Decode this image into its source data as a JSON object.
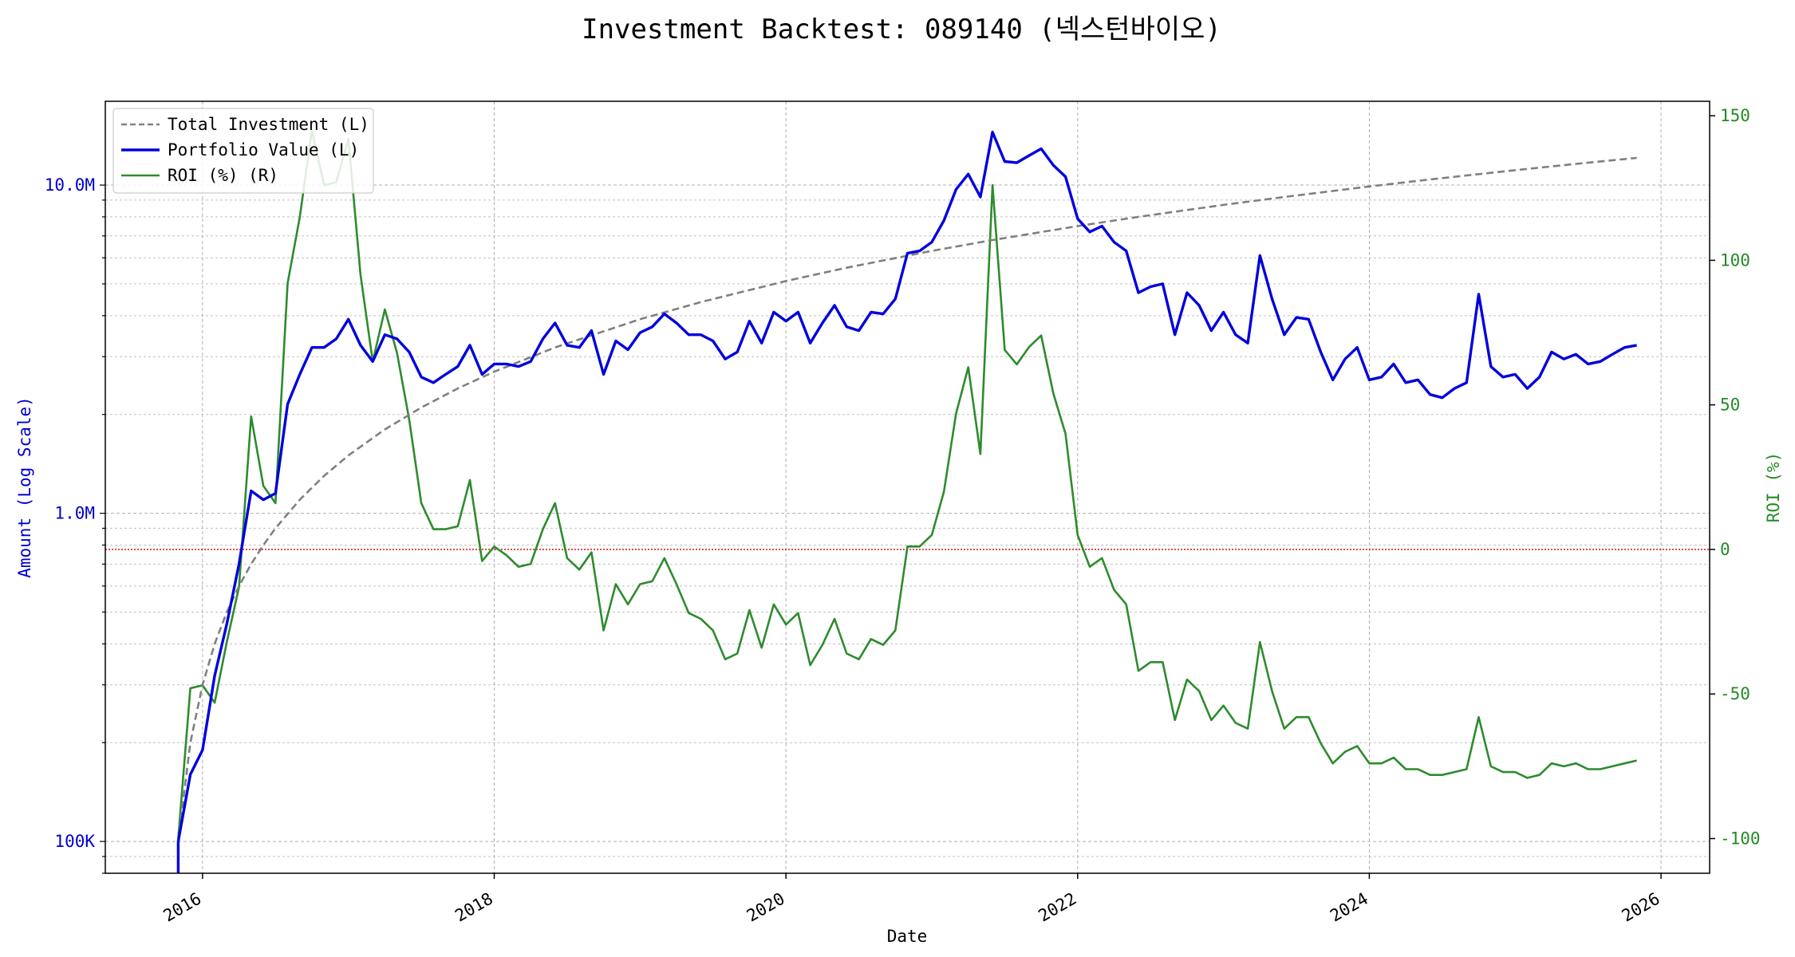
{
  "chart_data": {
    "type": "line",
    "title": "Investment Backtest: 089140 (넥스턴바이오)",
    "xlabel": "Date",
    "ylabel_left": "Amount (Log Scale)",
    "ylabel_right": "ROI (%)",
    "left_scale": "log",
    "left_ylim": [
      80000,
      18000000
    ],
    "right_ylim": [
      -112,
      155
    ],
    "x_range": [
      "2015-05-01",
      "2026-05-01"
    ],
    "x_ticks": [
      "2016",
      "2018",
      "2020",
      "2022",
      "2024",
      "2026"
    ],
    "left_ticks": [
      {
        "label": "100K",
        "value": 100000
      },
      {
        "label": "1.0M",
        "value": 1000000
      },
      {
        "label": "10.0M",
        "value": 10000000
      }
    ],
    "right_ticks": [
      -100,
      -50,
      0,
      50,
      100,
      150
    ],
    "grid": true,
    "zero_line": {
      "value": 0,
      "axis": "right",
      "color": "#cc0000"
    },
    "legend_position": "upper-left",
    "colors": {
      "total": "#808080",
      "portfolio": "#0000dd",
      "roi": "#2e8b2e"
    },
    "series": [
      {
        "name": "Total Investment (L)",
        "axis": "left",
        "style": "dashed",
        "x": [
          "2015-11",
          "2015-12",
          "2016-01",
          "2016-02",
          "2016-03",
          "2016-04",
          "2016-05",
          "2016-06",
          "2016-07",
          "2016-09",
          "2016-11",
          "2017-01",
          "2017-04",
          "2017-07",
          "2017-10",
          "2018-01",
          "2018-06",
          "2019-01",
          "2019-06",
          "2020-01",
          "2020-06",
          "2021-01",
          "2021-06",
          "2022-01",
          "2022-06",
          "2023-01",
          "2023-06",
          "2024-01",
          "2024-06",
          "2025-01",
          "2025-06",
          "2025-11"
        ],
        "values": [
          100000,
          200000,
          300000,
          400000,
          500000,
          600000,
          700000,
          800000,
          900000,
          1100000,
          1300000,
          1500000,
          1800000,
          2100000,
          2400000,
          2700000,
          3200000,
          3900000,
          4400000,
          5100000,
          5600000,
          6300000,
          6800000,
          7500000,
          8000000,
          8700000,
          9200000,
          9900000,
          10400000,
          11100000,
          11600000,
          12100000
        ]
      },
      {
        "name": "Portfolio Value (L)",
        "axis": "left",
        "style": "solid",
        "x": [
          "2015-11",
          "2015-12",
          "2016-01",
          "2016-02",
          "2016-03",
          "2016-04",
          "2016-05",
          "2016-06",
          "2016-07",
          "2016-08",
          "2016-09",
          "2016-10",
          "2016-11",
          "2016-12",
          "2017-01",
          "2017-02",
          "2017-03",
          "2017-04",
          "2017-05",
          "2017-06",
          "2017-07",
          "2017-08",
          "2017-09",
          "2017-10",
          "2017-11",
          "2017-12",
          "2018-01",
          "2018-02",
          "2018-03",
          "2018-04",
          "2018-05",
          "2018-06",
          "2018-07",
          "2018-08",
          "2018-09",
          "2018-10",
          "2018-11",
          "2018-12",
          "2019-01",
          "2019-02",
          "2019-03",
          "2019-04",
          "2019-05",
          "2019-06",
          "2019-07",
          "2019-08",
          "2019-09",
          "2019-10",
          "2019-11",
          "2019-12",
          "2020-01",
          "2020-02",
          "2020-03",
          "2020-04",
          "2020-05",
          "2020-06",
          "2020-07",
          "2020-08",
          "2020-09",
          "2020-10",
          "2020-11",
          "2020-12",
          "2021-01",
          "2021-02",
          "2021-03",
          "2021-04",
          "2021-05",
          "2021-06",
          "2021-07",
          "2021-08",
          "2021-09",
          "2021-10",
          "2021-11",
          "2021-12",
          "2022-01",
          "2022-02",
          "2022-03",
          "2022-04",
          "2022-05",
          "2022-06",
          "2022-07",
          "2022-08",
          "2022-09",
          "2022-10",
          "2022-11",
          "2022-12",
          "2023-01",
          "2023-02",
          "2023-03",
          "2023-04",
          "2023-05",
          "2023-06",
          "2023-07",
          "2023-08",
          "2023-09",
          "2023-10",
          "2023-11",
          "2023-12",
          "2024-01",
          "2024-02",
          "2024-03",
          "2024-04",
          "2024-05",
          "2024-06",
          "2024-07",
          "2024-08",
          "2024-09",
          "2024-10",
          "2024-11",
          "2024-12",
          "2025-01",
          "2025-02",
          "2025-03",
          "2025-04",
          "2025-05",
          "2025-06",
          "2025-07",
          "2025-08",
          "2025-09",
          "2025-10",
          "2025-11"
        ],
        "values": [
          100000,
          160000,
          190000,
          320000,
          460000,
          700000,
          1170000,
          1100000,
          1150000,
          2150000,
          2650000,
          3200000,
          3200000,
          3400000,
          3900000,
          3250000,
          2900000,
          3500000,
          3400000,
          3100000,
          2600000,
          2500000,
          2650000,
          2800000,
          3250000,
          2650000,
          2850000,
          2850000,
          2800000,
          2900000,
          3400000,
          3800000,
          3250000,
          3200000,
          3600000,
          2650000,
          3350000,
          3150000,
          3550000,
          3700000,
          4050000,
          3800000,
          3500000,
          3500000,
          3350000,
          2950000,
          3100000,
          3850000,
          3300000,
          4100000,
          3850000,
          4100000,
          3300000,
          3800000,
          4300000,
          3700000,
          3600000,
          4100000,
          4050000,
          4500000,
          6200000,
          6300000,
          6700000,
          7800000,
          9700000,
          10800000,
          9200000,
          14500000,
          11800000,
          11700000,
          12300000,
          12900000,
          11500000,
          10600000,
          7900000,
          7200000,
          7500000,
          6700000,
          6300000,
          4700000,
          4900000,
          5000000,
          3500000,
          4700000,
          4300000,
          3600000,
          4100000,
          3500000,
          3300000,
          6100000,
          4500000,
          3500000,
          3950000,
          3900000,
          3100000,
          2550000,
          2950000,
          3200000,
          2550000,
          2600000,
          2850000,
          2500000,
          2550000,
          2300000,
          2250000,
          2400000,
          2500000,
          4650000,
          2800000,
          2600000,
          2650000,
          2400000,
          2600000,
          3100000,
          2950000,
          3050000,
          2850000,
          2900000,
          3050000,
          3200000,
          3250000
        ]
      },
      {
        "name": "ROI (%) (R)",
        "axis": "right",
        "style": "solid",
        "x": [
          "2015-11",
          "2015-12",
          "2016-01",
          "2016-02",
          "2016-03",
          "2016-04",
          "2016-05",
          "2016-06",
          "2016-07",
          "2016-08",
          "2016-09",
          "2016-10",
          "2016-11",
          "2016-12",
          "2017-01",
          "2017-02",
          "2017-03",
          "2017-04",
          "2017-05",
          "2017-06",
          "2017-07",
          "2017-08",
          "2017-09",
          "2017-10",
          "2017-11",
          "2017-12",
          "2018-01",
          "2018-02",
          "2018-03",
          "2018-04",
          "2018-05",
          "2018-06",
          "2018-07",
          "2018-08",
          "2018-09",
          "2018-10",
          "2018-11",
          "2018-12",
          "2019-01",
          "2019-02",
          "2019-03",
          "2019-04",
          "2019-05",
          "2019-06",
          "2019-07",
          "2019-08",
          "2019-09",
          "2019-10",
          "2019-11",
          "2019-12",
          "2020-01",
          "2020-02",
          "2020-03",
          "2020-04",
          "2020-05",
          "2020-06",
          "2020-07",
          "2020-08",
          "2020-09",
          "2020-10",
          "2020-11",
          "2020-12",
          "2021-01",
          "2021-02",
          "2021-03",
          "2021-04",
          "2021-05",
          "2021-06",
          "2021-07",
          "2021-08",
          "2021-09",
          "2021-10",
          "2021-11",
          "2021-12",
          "2022-01",
          "2022-02",
          "2022-03",
          "2022-04",
          "2022-05",
          "2022-06",
          "2022-07",
          "2022-08",
          "2022-09",
          "2022-10",
          "2022-11",
          "2022-12",
          "2023-01",
          "2023-02",
          "2023-03",
          "2023-04",
          "2023-05",
          "2023-06",
          "2023-07",
          "2023-08",
          "2023-09",
          "2023-10",
          "2023-11",
          "2023-12",
          "2024-01",
          "2024-02",
          "2024-03",
          "2024-04",
          "2024-05",
          "2024-06",
          "2024-07",
          "2024-08",
          "2024-09",
          "2024-10",
          "2024-11",
          "2024-12",
          "2025-01",
          "2025-02",
          "2025-03",
          "2025-04",
          "2025-05",
          "2025-06",
          "2025-07",
          "2025-08",
          "2025-09",
          "2025-10",
          "2025-11"
        ],
        "values": [
          -100,
          -48,
          -47,
          -53,
          -32,
          -13,
          46,
          22,
          16,
          92,
          115,
          145,
          126,
          127,
          142,
          95,
          65,
          83,
          68,
          45,
          16,
          7,
          7,
          8,
          24,
          -4,
          1,
          -2,
          -6,
          -5,
          7,
          16,
          -3,
          -7,
          -1,
          -28,
          -12,
          -19,
          -12,
          -11,
          -3,
          -12,
          -22,
          -24,
          -28,
          -38,
          -36,
          -21,
          -34,
          -19,
          -26,
          -22,
          -40,
          -33,
          -24,
          -36,
          -38,
          -31,
          -33,
          -28,
          1,
          1,
          5,
          20,
          47,
          63,
          33,
          126,
          69,
          64,
          70,
          74,
          54,
          40,
          5,
          -6,
          -3,
          -14,
          -19,
          -42,
          -39,
          -39,
          -59,
          -45,
          -49,
          -59,
          -54,
          -60,
          -62,
          -32,
          -49,
          -62,
          -58,
          -58,
          -67,
          -74,
          -70,
          -68,
          -74,
          -74,
          -72,
          -76,
          -76,
          -78,
          -78,
          -77,
          -76,
          -58,
          -75,
          -77,
          -77,
          -79,
          -78,
          -74,
          -75,
          -74,
          -76,
          -76,
          -75,
          -74,
          -73
        ]
      }
    ]
  }
}
